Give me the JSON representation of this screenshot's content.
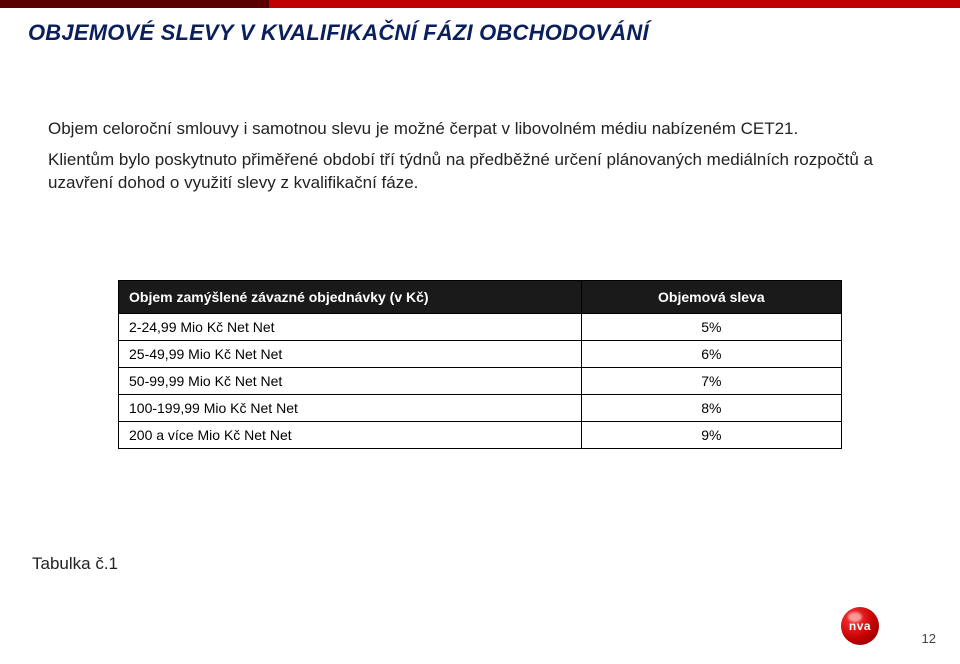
{
  "accent": {
    "dark": "#5a0000",
    "red": "#c00000"
  },
  "title": "OBJEMOVÉ SLEVY V KVALIFIKAČNÍ FÁZI OBCHODOVÁNÍ",
  "paragraphs": [
    "Objem celoroční smlouvy i samotnou slevu je možné čerpat v libovolném médiu nabízeném CET21.",
    "Klientům bylo poskytnuto přiměřené období tří týdnů na předběžné určení plánovaných mediálních rozpočtů a uzavření dohod o využití slevy z kvalifikační fáze."
  ],
  "table": {
    "headers": [
      "Objem zamýšlené závazné objednávky (v Kč)",
      "Objemová sleva"
    ],
    "rows": [
      [
        "2-24,99 Mio Kč Net Net",
        "5%"
      ],
      [
        "25-49,99 Mio Kč Net Net",
        "6%"
      ],
      [
        "50-99,99 Mio Kč Net Net",
        "7%"
      ],
      [
        "100-199,99 Mio Kč Net Net",
        "8%"
      ],
      [
        "200 a více Mio Kč Net Net",
        "9%"
      ]
    ]
  },
  "table_caption": "Tabulka č.1",
  "logo_text": "nva",
  "page_number": "12"
}
